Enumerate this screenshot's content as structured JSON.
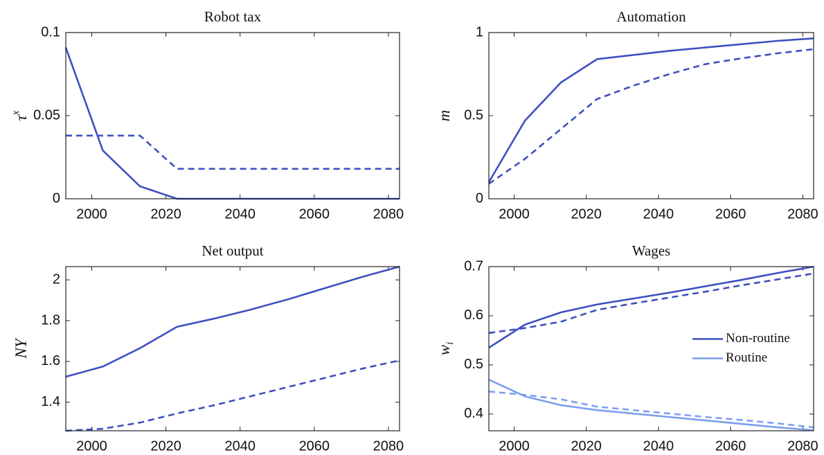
{
  "chart_data": [
    {
      "type": "line",
      "title": "Robot tax",
      "ylabel": "τ",
      "ylabel_sup": "x",
      "x": [
        1993,
        2003,
        2013,
        2023,
        2033,
        2043,
        2053,
        2063,
        2073,
        2083
      ],
      "xlim": [
        1993,
        2083
      ],
      "xticks": [
        2000,
        2020,
        2040,
        2060,
        2080
      ],
      "ylim": [
        0,
        0.1
      ],
      "yticks": [
        0,
        0.05,
        0.1
      ],
      "series": [
        {
          "color": "#3f4fc0",
          "dash": false,
          "values": [
            0.091,
            0.029,
            0.0075,
            0,
            0,
            0,
            0,
            0,
            0,
            0
          ]
        },
        {
          "color": "#3f4fc0",
          "dash": true,
          "values": [
            0.038,
            0.038,
            0.038,
            0.018,
            0.018,
            0.018,
            0.018,
            0.018,
            0.018,
            0.018
          ]
        }
      ]
    },
    {
      "type": "line",
      "title": "Automation",
      "ylabel": "m",
      "x": [
        1993,
        2003,
        2013,
        2023,
        2033,
        2043,
        2053,
        2063,
        2073,
        2083
      ],
      "xlim": [
        1993,
        2083
      ],
      "xticks": [
        2000,
        2020,
        2040,
        2060,
        2080
      ],
      "ylim": [
        0,
        1
      ],
      "yticks": [
        0,
        0.5,
        1
      ],
      "series": [
        {
          "color": "#3f4fc0",
          "dash": false,
          "values": [
            0.1,
            0.47,
            0.7,
            0.84,
            0.865,
            0.89,
            0.91,
            0.93,
            0.95,
            0.965
          ]
        },
        {
          "color": "#3f4fc0",
          "dash": true,
          "values": [
            0.09,
            0.24,
            0.42,
            0.6,
            0.68,
            0.75,
            0.81,
            0.845,
            0.875,
            0.9
          ]
        }
      ]
    },
    {
      "type": "line",
      "title": "Net output",
      "ylabel": "NY",
      "x": [
        1993,
        2003,
        2013,
        2023,
        2033,
        2043,
        2053,
        2063,
        2073,
        2083
      ],
      "xlim": [
        1993,
        2083
      ],
      "xticks": [
        2000,
        2020,
        2040,
        2060,
        2080
      ],
      "ylim": [
        1.26,
        2.065
      ],
      "yticks": [
        1.4,
        1.6,
        1.8,
        2
      ],
      "series": [
        {
          "color": "#3f4fc0",
          "dash": false,
          "values": [
            1.525,
            1.575,
            1.665,
            1.77,
            1.81,
            1.855,
            1.905,
            1.96,
            2.015,
            2.065
          ]
        },
        {
          "color": "#3f4fc0",
          "dash": true,
          "values": [
            1.26,
            1.27,
            1.3,
            1.345,
            1.385,
            1.43,
            1.475,
            1.52,
            1.565,
            1.605
          ]
        }
      ]
    },
    {
      "type": "line",
      "title": "Wages",
      "ylabel": "w",
      "ylabel_sub": "i",
      "legend": "center right",
      "x": [
        1993,
        2003,
        2013,
        2023,
        2033,
        2043,
        2053,
        2063,
        2073,
        2083
      ],
      "xlim": [
        1993,
        2083
      ],
      "xticks": [
        2000,
        2020,
        2040,
        2060,
        2080
      ],
      "ylim": [
        0.366,
        0.7
      ],
      "yticks": [
        0.4,
        0.5,
        0.6,
        0.7
      ],
      "series": [
        {
          "name": "Non-routine",
          "color": "#3f4fc0",
          "dash": false,
          "values": [
            0.535,
            0.582,
            0.607,
            0.623,
            0.635,
            0.647,
            0.66,
            0.673,
            0.687,
            0.7
          ]
        },
        {
          "color": "#3f4fc0",
          "dash": true,
          "values": [
            0.565,
            0.575,
            0.588,
            0.612,
            0.625,
            0.637,
            0.649,
            0.662,
            0.674,
            0.686
          ]
        },
        {
          "name": "Routine",
          "color": "#7a9ef0",
          "dash": false,
          "values": [
            0.47,
            0.436,
            0.418,
            0.408,
            0.401,
            0.394,
            0.387,
            0.38,
            0.373,
            0.367
          ]
        },
        {
          "color": "#7a9ef0",
          "dash": true,
          "values": [
            0.446,
            0.439,
            0.43,
            0.415,
            0.408,
            0.401,
            0.394,
            0.388,
            0.381,
            0.373
          ]
        }
      ]
    }
  ]
}
